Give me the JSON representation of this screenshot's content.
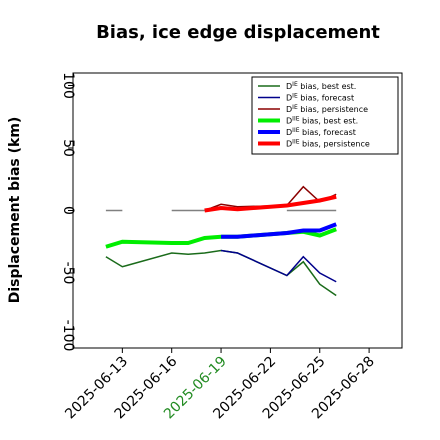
{
  "chart_data": {
    "type": "line",
    "title": "Bias, ice edge displacement",
    "ylabel": "Displacement bias (km)",
    "ylim": [
      -110,
      110
    ],
    "yticks": [
      -100,
      -50,
      0,
      50,
      100
    ],
    "xlim": [
      "2025-06-10",
      "2025-06-30"
    ],
    "xticks": [
      "2025-06-13",
      "2025-06-16",
      "2025-06-19",
      "2025-06-22",
      "2025-06-25",
      "2025-06-28"
    ],
    "highlighted_xtick": "2025-06-19",
    "highlight_color": "#228b22",
    "legend": "upper right",
    "series": [
      {
        "name": "DIE bias, best est.",
        "color": "#1a6b1a",
        "width": 1.5,
        "x": [
          "2025-06-12",
          "2025-06-13",
          "2025-06-16",
          "2025-06-17",
          "2025-06-18",
          "2025-06-19",
          "2025-06-20",
          "2025-06-23",
          "2025-06-24",
          "2025-06-25",
          "2025-06-26"
        ],
        "values": [
          -37,
          -45,
          -34,
          -35,
          -34,
          -32,
          -34,
          -52,
          -41,
          -59,
          -68
        ]
      },
      {
        "name": "DIE bias, forecast",
        "color": "#00008b",
        "width": 1.5,
        "x": [
          "2025-06-19",
          "2025-06-20",
          "2025-06-23",
          "2025-06-24",
          "2025-06-25",
          "2025-06-26"
        ],
        "values": [
          -32,
          -34,
          -52,
          -37,
          -50,
          -57
        ]
      },
      {
        "name": "DIE bias, persistence",
        "color": "#8b0000",
        "width": 1.5,
        "x": [
          "2025-06-18",
          "2025-06-19",
          "2025-06-20",
          "2025-06-23",
          "2025-06-24",
          "2025-06-25",
          "2025-06-26"
        ],
        "values": [
          0,
          5,
          3,
          4,
          19,
          7,
          13
        ]
      },
      {
        "name": "DIIE bias, best est.",
        "color": "#00ee00",
        "width": 4,
        "x": [
          "2025-06-12",
          "2025-06-13",
          "2025-06-16",
          "2025-06-17",
          "2025-06-18",
          "2025-06-19",
          "2025-06-20",
          "2025-06-23",
          "2025-06-24",
          "2025-06-25",
          "2025-06-26"
        ],
        "values": [
          -29,
          -25,
          -26,
          -26,
          -22,
          -21,
          -21,
          -18,
          -17,
          -20,
          -15
        ]
      },
      {
        "name": "DIIE bias, forecast",
        "color": "#0000ff",
        "width": 4,
        "x": [
          "2025-06-19",
          "2025-06-20",
          "2025-06-23",
          "2025-06-24",
          "2025-06-25",
          "2025-06-26"
        ],
        "values": [
          -21,
          -21,
          -18,
          -16,
          -16,
          -11
        ]
      },
      {
        "name": "DIIE bias, persistence",
        "color": "#ff0000",
        "width": 4,
        "x": [
          "2025-06-18",
          "2025-06-19",
          "2025-06-20",
          "2025-06-23",
          "2025-06-24",
          "2025-06-25",
          "2025-06-26"
        ],
        "values": [
          0,
          2,
          1,
          4,
          6,
          8,
          11
        ]
      },
      {
        "color": "#808080",
        "width": 1.5,
        "x": [
          "2025-06-12",
          "2025-06-13",
          "2025-06-14",
          "2025-06-16",
          "2025-06-17",
          "2025-06-18",
          "2025-06-21",
          "2025-06-23",
          "2025-06-24",
          "2025-06-25",
          "2025-06-26"
        ],
        "values": [
          0,
          0,
          null,
          0,
          0,
          0,
          null,
          0,
          0,
          0,
          0
        ]
      }
    ]
  }
}
